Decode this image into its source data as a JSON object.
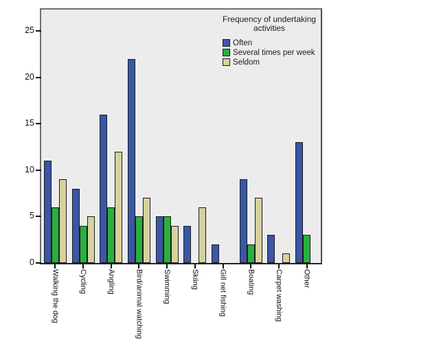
{
  "chart_data": {
    "type": "bar",
    "title": "Frequency of undertaking activities",
    "categories": [
      "Walking the dog",
      "Cycling",
      "Angling",
      "Bird/animal watching",
      "Swimming",
      "Skiing",
      "Gill net fishing",
      "Boating",
      "Carpet washing",
      "Other"
    ],
    "series": [
      {
        "name": "Often",
        "color": "#3A57A6",
        "values": [
          11,
          8,
          16,
          22,
          5,
          4,
          2,
          9,
          3,
          13
        ]
      },
      {
        "name": "Several times per week",
        "color": "#28B13C",
        "values": [
          6,
          4,
          6,
          5,
          5,
          0,
          0,
          2,
          0,
          3
        ]
      },
      {
        "name": "Seldom",
        "color": "#D7D19E",
        "values": [
          9,
          5,
          12,
          7,
          4,
          6,
          0,
          7,
          1,
          0
        ]
      }
    ],
    "xlabel": "",
    "ylabel": "",
    "ylim": [
      0,
      27.3
    ],
    "yticks": [
      0,
      5,
      10,
      15,
      20,
      25
    ],
    "grid": false,
    "legend_position": "top-right-inside",
    "plot_background": "#ECECEC",
    "bar_border_color": "#1A1A1A"
  }
}
